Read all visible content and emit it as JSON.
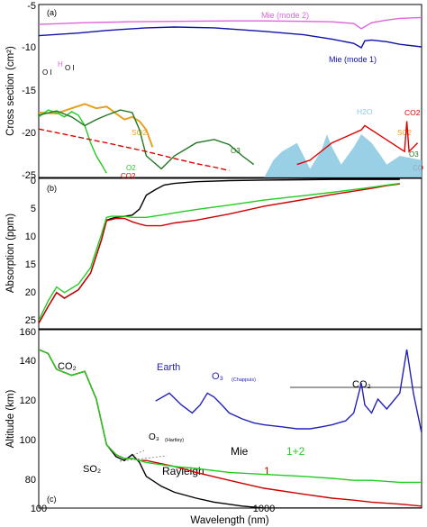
{
  "chart_data": [
    {
      "type": "line",
      "panel_label": "(a)",
      "ylabel": "Cross section (cm²)",
      "x_scale": "log",
      "xlim": [
        100,
        5000
      ],
      "ylim": [
        -25,
        -5
      ],
      "y_ticks": [
        "-5",
        "-10",
        "-15",
        "-20",
        "-25"
      ],
      "series": [
        {
          "name": "Mie (mode 2)",
          "color": "#dd66dd",
          "x": [
            100,
            160,
            250,
            400,
            700,
            1000,
            1500,
            2000,
            2500,
            2700,
            3000,
            3500,
            4000,
            5000
          ],
          "y": [
            -7.3,
            -7.1,
            -7.0,
            -6.95,
            -6.9,
            -6.9,
            -6.95,
            -7.0,
            -7.2,
            -7.8,
            -7.1,
            -6.8,
            -6.6,
            -6.5
          ]
        },
        {
          "name": "Mie (mode 1)",
          "color": "#1111aa",
          "x": [
            100,
            150,
            200,
            300,
            400,
            600,
            1000,
            1500,
            2000,
            2500,
            2700,
            2800,
            3000,
            3500,
            4000,
            5000
          ],
          "y": [
            -8.6,
            -8.3,
            -8.0,
            -7.7,
            -7.6,
            -7.7,
            -8.1,
            -8.5,
            -9.0,
            -9.5,
            -10.0,
            -9.2,
            -9.1,
            -9.3,
            -9.6,
            -9.9
          ]
        },
        {
          "name": "SO2",
          "color": "#e8a020",
          "x": [
            100,
            120,
            140,
            160,
            180,
            200,
            210,
            220,
            240,
            260,
            280,
            300,
            320
          ],
          "y": [
            -17.5,
            -17.6,
            -17.0,
            -16.5,
            -17.0,
            -16.8,
            -17.2,
            -17.6,
            -18.3,
            -18.0,
            -18.5,
            -19.5,
            -21.5
          ]
        },
        {
          "name": "O2",
          "color": "#22cc22",
          "x": [
            100,
            110,
            120,
            130,
            140,
            150,
            160,
            170,
            180,
            190,
            200
          ],
          "y": [
            -18.0,
            -17.2,
            -17.5,
            -18.0,
            -17.4,
            -17.8,
            -19.0,
            -21.0,
            -22.5,
            -23.5,
            -24.5
          ]
        },
        {
          "name": "O3",
          "color": "#227722",
          "x": [
            100,
            120,
            140,
            160,
            180,
            200,
            230,
            260,
            280,
            300,
            350,
            400,
            500,
            600,
            700,
            800,
            900
          ],
          "y": [
            -17.8,
            -17.3,
            -18.0,
            -19.0,
            -18.3,
            -17.8,
            -17.2,
            -17.5,
            -19.5,
            -22.5,
            -24.0,
            -22.5,
            -21.0,
            -20.6,
            -21.2,
            -22.5,
            -23.5
          ]
        },
        {
          "name": "Rayleigh",
          "color": "#dd0000",
          "x": [
            100,
            200,
            300,
            400,
            500,
            600,
            700
          ],
          "y": [
            -19.4,
            -21.0,
            -22.0,
            -22.8,
            -23.4,
            -23.8,
            -24.2
          ]
        },
        {
          "name": "H2O",
          "color": "#88c8e0",
          "x": [
            1000,
            1100,
            1200,
            1400,
            1600,
            1800,
            1900,
            2000,
            2200,
            2500,
            2700,
            3000,
            3200,
            3500,
            4000,
            5000
          ],
          "y": [
            -25,
            -23.0,
            -22.0,
            -21.0,
            -24.0,
            -21.8,
            -20.0,
            -21.5,
            -23.5,
            -21.5,
            -20.0,
            -21.0,
            -22.0,
            -23.5,
            -22.5,
            -23.0
          ]
        },
        {
          "name": "CO2",
          "color": "#dd0000",
          "x": [
            1400,
            1600,
            2000,
            2700,
            2800,
            4200,
            4300,
            4400,
            4800
          ],
          "y": [
            -23.5,
            -23.0,
            -21.0,
            -19.5,
            -19.0,
            -22.0,
            -18.5,
            -22.0,
            -21.0
          ]
        }
      ],
      "annotations": [
        "O I",
        "H",
        "O I",
        "SO2",
        "O3",
        "O2",
        "CO2",
        "H2O",
        "CO2",
        "SO2",
        "O3",
        "CO"
      ]
    },
    {
      "type": "line",
      "panel_label": "(b)",
      "ylabel": "Absorption (ppm)",
      "x_scale": "log",
      "xlim": [
        100,
        5000
      ],
      "ylim": [
        0,
        27
      ],
      "y_inverted": true,
      "y_ticks": [
        "0",
        "5",
        "10",
        "15",
        "20",
        "25"
      ],
      "series": [
        {
          "name": "Rayleigh",
          "color": "#000000",
          "x": [
            100,
            110,
            120,
            130,
            150,
            170,
            190,
            200,
            210,
            220,
            240,
            260,
            280,
            300,
            330,
            360,
            400,
            500,
            700,
            1000,
            1500,
            2000,
            2500,
            3000,
            3500,
            4000
          ],
          "y": [
            26,
            23,
            20.5,
            21.5,
            20,
            17,
            11,
            7.5,
            7.2,
            7.0,
            6.8,
            6.6,
            5.5,
            3.0,
            2.0,
            1.2,
            0.9,
            0.6,
            0.4,
            0.3,
            0.25,
            0.2,
            0.2,
            0.2,
            0.2,
            0.2
          ]
        },
        {
          "name": "1",
          "color": "#cc0000",
          "x": [
            100,
            110,
            120,
            130,
            150,
            170,
            190,
            200,
            210,
            220,
            240,
            260,
            280,
            300,
            350,
            400,
            500,
            700,
            1000,
            1500,
            2000,
            2500,
            3000,
            3500,
            4000
          ],
          "y": [
            26,
            23,
            20.5,
            21.5,
            20,
            17,
            11,
            7.6,
            7.4,
            7.2,
            7.2,
            7.8,
            8.2,
            8.5,
            8.5,
            8.0,
            7.5,
            6.4,
            5.0,
            3.8,
            2.9,
            2.3,
            1.8,
            1.3,
            1.0
          ]
        },
        {
          "name": "1+2",
          "color": "#22cc22",
          "x": [
            100,
            110,
            120,
            130,
            150,
            170,
            190,
            200,
            210,
            220,
            240,
            260,
            280,
            300,
            350,
            400,
            500,
            700,
            1000,
            1500,
            2000,
            2500,
            3000,
            3500,
            4000
          ],
          "y": [
            25.5,
            22,
            19.5,
            20.5,
            19,
            16,
            10,
            7.0,
            6.8,
            6.8,
            6.8,
            7.0,
            7.0,
            7.0,
            6.6,
            6.2,
            5.6,
            4.8,
            3.9,
            3.1,
            2.5,
            2.0,
            1.6,
            1.2,
            0.9
          ]
        }
      ]
    },
    {
      "type": "line",
      "panel_label": "(c)",
      "ylabel": "Altitude (km)",
      "xlabel": "Wavelength (nm)",
      "x_scale": "log",
      "xlim": [
        100,
        5000
      ],
      "ylim": [
        70,
        160
      ],
      "x_ticks": [
        "100",
        "1000"
      ],
      "y_ticks": [
        "80",
        "100",
        "120",
        "140",
        "160"
      ],
      "series": [
        {
          "name": "Earth",
          "color": "#2222bb",
          "x": [
            330,
            380,
            430,
            480,
            520,
            560,
            600,
            650,
            700,
            800,
            900,
            1000,
            1200,
            1400,
            1600,
            1800,
            2000,
            2300,
            2500,
            2700,
            2800,
            3000,
            3200,
            3500,
            4000,
            4300,
            4600,
            5000
          ],
          "y": [
            124,
            128,
            122,
            118,
            122,
            128,
            126,
            122,
            118,
            115,
            113,
            112,
            111,
            110,
            110,
            111,
            112,
            114,
            118,
            133,
            122,
            118,
            125,
            120,
            128,
            150,
            128,
            108
          ]
        },
        {
          "name": "Rayleigh",
          "color": "#000000",
          "x": [
            100,
            110,
            120,
            140,
            160,
            180,
            200,
            220,
            240,
            260,
            280,
            300,
            350,
            400,
            500,
            600,
            800,
            1000,
            1500,
            2000,
            3000,
            4000,
            5000
          ],
          "y": [
            150,
            148,
            140,
            137,
            139,
            125,
            102,
            96,
            94,
            97,
            93,
            86,
            81,
            78,
            75,
            73,
            71,
            70,
            70,
            70,
            70,
            70,
            70
          ]
        },
        {
          "name": "1",
          "color": "#cc0000",
          "x": [
            100,
            110,
            120,
            140,
            160,
            180,
            200,
            220,
            240,
            260,
            280,
            300,
            400,
            500,
            700,
            1000,
            1500,
            2000,
            2500,
            3000,
            4000,
            5000
          ],
          "y": [
            150,
            148,
            140,
            137,
            139,
            125,
            102,
            97,
            95,
            95,
            94,
            94,
            91,
            88,
            84,
            80,
            77,
            75,
            74,
            73,
            72,
            71
          ]
        },
        {
          "name": "1+2",
          "color": "#22cc22",
          "x": [
            100,
            110,
            120,
            140,
            160,
            180,
            200,
            220,
            240,
            260,
            280,
            300,
            400,
            500,
            700,
            1000,
            1500,
            2000,
            2500,
            3000,
            4000,
            5000
          ],
          "y": [
            150,
            148,
            140,
            137,
            139,
            125,
            102,
            97,
            95,
            95,
            94,
            93,
            91,
            90,
            88,
            87,
            86,
            85,
            84,
            84,
            83,
            83
          ]
        }
      ],
      "labels": {
        "co2": "CO₂",
        "earth": "Earth",
        "o3_chappuis": "O₃",
        "o3_chappuis_sub": "(Chappuis)",
        "o3_hartley": "O₃",
        "o3_hartley_sub": "(Hartley)",
        "so2": "SO₂",
        "rayleigh": "Rayleigh",
        "mie": "Mie",
        "one": "1",
        "one_plus_two": "1+2",
        "co2_right": "CO₂"
      }
    }
  ]
}
